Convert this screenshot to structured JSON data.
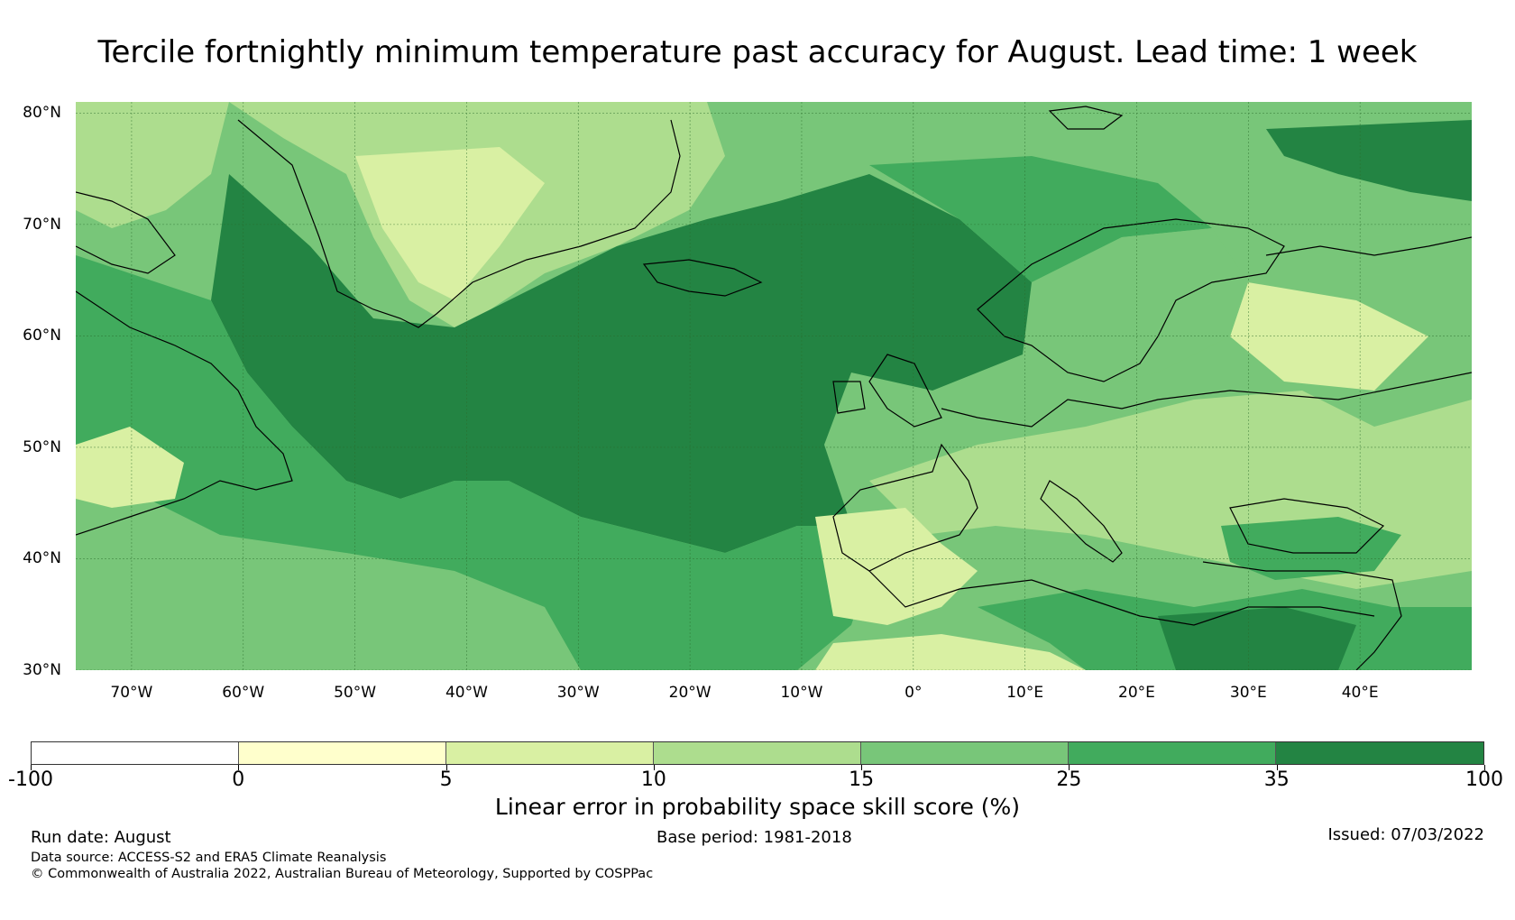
{
  "title": "Tercile fortnightly minimum temperature past accuracy for August. Lead time: 1 week",
  "map": {
    "region": "North Atlantic and Europe",
    "lat_labels": [
      "80°N",
      "70°N",
      "60°N",
      "50°N",
      "40°N",
      "30°N"
    ],
    "lon_labels": [
      "70°W",
      "60°W",
      "50°W",
      "40°W",
      "30°W",
      "20°W",
      "10°W",
      "0°",
      "10°E",
      "20°E",
      "30°E",
      "40°E"
    ],
    "lat_values": [
      80,
      70,
      60,
      50,
      40,
      30
    ],
    "lon_values": [
      -70,
      -60,
      -50,
      -40,
      -30,
      -20,
      -10,
      0,
      10,
      20,
      30,
      40
    ],
    "extent": {
      "lon_min": -75,
      "lon_max": 50,
      "lat_min": 30,
      "lat_max": 81
    },
    "gridlines": true
  },
  "colorbar": {
    "label": "Linear error in probability space skill score (%)",
    "tick_labels": [
      "-100",
      "0",
      "5",
      "10",
      "15",
      "25",
      "35",
      "100"
    ],
    "bins": [
      {
        "from": -100,
        "to": 0,
        "color": "#ffffff"
      },
      {
        "from": 0,
        "to": 5,
        "color": "#ffffcc"
      },
      {
        "from": 5,
        "to": 10,
        "color": "#d9f0a3"
      },
      {
        "from": 10,
        "to": 15,
        "color": "#addd8e"
      },
      {
        "from": 15,
        "to": 25,
        "color": "#78c679"
      },
      {
        "from": 25,
        "to": 35,
        "color": "#41ab5d"
      },
      {
        "from": 35,
        "to": 100,
        "color": "#238443"
      }
    ]
  },
  "footer": {
    "run_date": "Run date: August",
    "base_period": "Base period: 1981-2018",
    "issued": "Issued: 07/03/2022",
    "data_source": "Data source: ACCESS-S2 and ERA5 Climate Reanalysis",
    "copyright": "© Commonwealth of Australia 2022, Australian Bureau of Meteorology, Supported by COSPPac"
  }
}
